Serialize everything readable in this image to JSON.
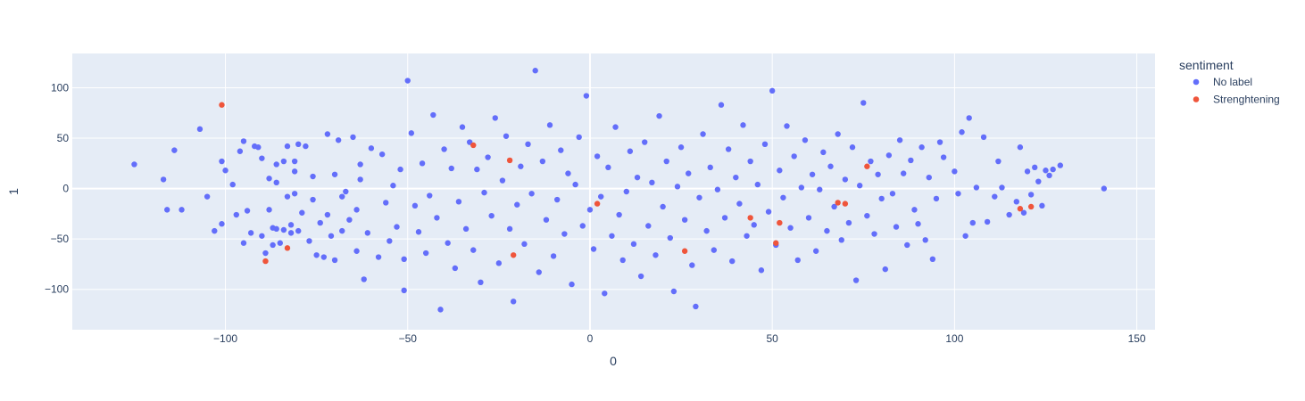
{
  "chart_data": {
    "type": "scatter",
    "title": "",
    "xlabel": "0",
    "ylabel": "1",
    "xlim": [
      -142,
      155
    ],
    "ylim": [
      -140,
      134
    ],
    "x_ticks": [
      -100,
      -50,
      0,
      50,
      100,
      150
    ],
    "y_ticks": [
      -100,
      -50,
      0,
      50,
      100
    ],
    "grid": true,
    "legend_title": "sentiment",
    "legend_placement": "right",
    "colors": {
      "plot_bg": "#e5ecf6",
      "grid": "#ffffff",
      "text": "#2a3f5f"
    },
    "series": [
      {
        "name": "No label",
        "color": "#636efa",
        "cluster_note": "approximately 1600 points forming an elliptical cloud centered near (0, 0); x spans about -125 to 141, y spans about -122 to 118",
        "points": [
          [
            -125,
            24
          ],
          [
            -117,
            9
          ],
          [
            -116,
            -21
          ],
          [
            -114,
            38
          ],
          [
            -112,
            -21
          ],
          [
            -107,
            59
          ],
          [
            -105,
            -8
          ],
          [
            -103,
            -42
          ],
          [
            -101,
            27
          ],
          [
            -101,
            -35
          ],
          [
            -100,
            18
          ],
          [
            -98,
            4
          ],
          [
            -97,
            -26
          ],
          [
            -96,
            37
          ],
          [
            -95,
            -54
          ],
          [
            -95,
            47
          ],
          [
            -94,
            -22
          ],
          [
            -93,
            -44
          ],
          [
            -92,
            42
          ],
          [
            -91,
            41
          ],
          [
            -90,
            30
          ],
          [
            -90,
            -47
          ],
          [
            -89,
            -64
          ],
          [
            -88,
            10
          ],
          [
            -88,
            -21
          ],
          [
            -87,
            -39
          ],
          [
            -87,
            -56
          ],
          [
            -86,
            24
          ],
          [
            -86,
            6
          ],
          [
            -86,
            -40
          ],
          [
            -85,
            -54
          ],
          [
            -84,
            27
          ],
          [
            -84,
            -41
          ],
          [
            -83,
            -8
          ],
          [
            -83,
            42
          ],
          [
            -82,
            -44
          ],
          [
            -82,
            -36
          ],
          [
            -81,
            17
          ],
          [
            -81,
            -5
          ],
          [
            -81,
            27
          ],
          [
            -80,
            44
          ],
          [
            -80,
            -42
          ],
          [
            -79,
            -24
          ],
          [
            -78,
            42
          ],
          [
            -77,
            -52
          ],
          [
            -76,
            -11
          ],
          [
            -76,
            12
          ],
          [
            -75,
            -66
          ],
          [
            -74,
            -34
          ],
          [
            -73,
            -68
          ],
          [
            -72,
            -26
          ],
          [
            -72,
            54
          ],
          [
            -71,
            -47
          ],
          [
            -70,
            14
          ],
          [
            -70,
            -71
          ],
          [
            -69,
            48
          ],
          [
            -68,
            -8
          ],
          [
            -68,
            -42
          ],
          [
            -67,
            -3
          ],
          [
            -66,
            -31
          ],
          [
            -65,
            51
          ],
          [
            -64,
            -62
          ],
          [
            -64,
            -21
          ],
          [
            -63,
            24
          ],
          [
            -63,
            9
          ],
          [
            -62,
            -90
          ],
          [
            -61,
            -44
          ],
          [
            -60,
            40
          ],
          [
            -58,
            -68
          ],
          [
            -57,
            34
          ],
          [
            -56,
            -14
          ],
          [
            -55,
            -52
          ],
          [
            -54,
            3
          ],
          [
            -53,
            -38
          ],
          [
            -52,
            19
          ],
          [
            -51,
            -101
          ],
          [
            -51,
            -70
          ],
          [
            -50,
            107
          ],
          [
            -49,
            55
          ],
          [
            -48,
            -17
          ],
          [
            -47,
            -43
          ],
          [
            -46,
            25
          ],
          [
            -45,
            -64
          ],
          [
            -44,
            -7
          ],
          [
            -43,
            73
          ],
          [
            -42,
            -29
          ],
          [
            -41,
            -120
          ],
          [
            -40,
            39
          ],
          [
            -39,
            -54
          ],
          [
            -38,
            20
          ],
          [
            -37,
            -79
          ],
          [
            -36,
            -13
          ],
          [
            -35,
            61
          ],
          [
            -34,
            -40
          ],
          [
            -33,
            46
          ],
          [
            -32,
            -61
          ],
          [
            -31,
            19
          ],
          [
            -30,
            -93
          ],
          [
            -29,
            -4
          ],
          [
            -28,
            31
          ],
          [
            -27,
            -27
          ],
          [
            -26,
            70
          ],
          [
            -25,
            -74
          ],
          [
            -24,
            8
          ],
          [
            -23,
            52
          ],
          [
            -22,
            -40
          ],
          [
            -21,
            -112
          ],
          [
            -20,
            -16
          ],
          [
            -19,
            22
          ],
          [
            -18,
            -55
          ],
          [
            -17,
            44
          ],
          [
            -16,
            -5
          ],
          [
            -15,
            117
          ],
          [
            -14,
            -83
          ],
          [
            -13,
            27
          ],
          [
            -12,
            -31
          ],
          [
            -11,
            63
          ],
          [
            -10,
            -67
          ],
          [
            -9,
            -11
          ],
          [
            -8,
            38
          ],
          [
            -7,
            -45
          ],
          [
            -6,
            15
          ],
          [
            -5,
            -95
          ],
          [
            -4,
            4
          ],
          [
            -3,
            51
          ],
          [
            -2,
            -37
          ],
          [
            -1,
            92
          ],
          [
            0,
            -21
          ],
          [
            1,
            -60
          ],
          [
            2,
            32
          ],
          [
            3,
            -8
          ],
          [
            4,
            -104
          ],
          [
            5,
            21
          ],
          [
            6,
            -47
          ],
          [
            7,
            61
          ],
          [
            8,
            -26
          ],
          [
            9,
            -71
          ],
          [
            10,
            -3
          ],
          [
            11,
            37
          ],
          [
            12,
            -55
          ],
          [
            13,
            11
          ],
          [
            14,
            -87
          ],
          [
            15,
            46
          ],
          [
            16,
            -37
          ],
          [
            17,
            6
          ],
          [
            18,
            -66
          ],
          [
            19,
            72
          ],
          [
            20,
            -18
          ],
          [
            21,
            27
          ],
          [
            22,
            -49
          ],
          [
            23,
            -102
          ],
          [
            24,
            2
          ],
          [
            25,
            41
          ],
          [
            26,
            -31
          ],
          [
            27,
            15
          ],
          [
            28,
            -76
          ],
          [
            29,
            -117
          ],
          [
            30,
            -9
          ],
          [
            31,
            54
          ],
          [
            32,
            -42
          ],
          [
            33,
            21
          ],
          [
            34,
            -61
          ],
          [
            35,
            -1
          ],
          [
            36,
            83
          ],
          [
            37,
            -29
          ],
          [
            38,
            39
          ],
          [
            39,
            -72
          ],
          [
            40,
            11
          ],
          [
            41,
            -15
          ],
          [
            42,
            63
          ],
          [
            43,
            -47
          ],
          [
            44,
            27
          ],
          [
            45,
            -36
          ],
          [
            46,
            4
          ],
          [
            47,
            -81
          ],
          [
            48,
            44
          ],
          [
            49,
            -23
          ],
          [
            50,
            97
          ],
          [
            51,
            -56
          ],
          [
            52,
            18
          ],
          [
            53,
            -9
          ],
          [
            54,
            62
          ],
          [
            55,
            -39
          ],
          [
            56,
            32
          ],
          [
            57,
            -71
          ],
          [
            58,
            1
          ],
          [
            59,
            48
          ],
          [
            60,
            -29
          ],
          [
            61,
            14
          ],
          [
            62,
            -62
          ],
          [
            63,
            -1
          ],
          [
            64,
            36
          ],
          [
            65,
            -42
          ],
          [
            66,
            22
          ],
          [
            67,
            -18
          ],
          [
            68,
            54
          ],
          [
            69,
            -51
          ],
          [
            70,
            9
          ],
          [
            71,
            -34
          ],
          [
            72,
            41
          ],
          [
            73,
            -91
          ],
          [
            74,
            3
          ],
          [
            75,
            85
          ],
          [
            76,
            -27
          ],
          [
            77,
            27
          ],
          [
            78,
            -45
          ],
          [
            79,
            14
          ],
          [
            80,
            -10
          ],
          [
            81,
            -80
          ],
          [
            82,
            33
          ],
          [
            83,
            -5
          ],
          [
            84,
            -38
          ],
          [
            85,
            48
          ],
          [
            86,
            15
          ],
          [
            87,
            -56
          ],
          [
            88,
            28
          ],
          [
            89,
            -21
          ],
          [
            90,
            -35
          ],
          [
            91,
            41
          ],
          [
            92,
            -51
          ],
          [
            93,
            11
          ],
          [
            94,
            -70
          ],
          [
            95,
            -10
          ],
          [
            96,
            46
          ],
          [
            97,
            31
          ],
          [
            100,
            17
          ],
          [
            101,
            -5
          ],
          [
            102,
            56
          ],
          [
            103,
            -47
          ],
          [
            104,
            70
          ],
          [
            105,
            -34
          ],
          [
            106,
            1
          ],
          [
            108,
            51
          ],
          [
            109,
            -33
          ],
          [
            111,
            -8
          ],
          [
            112,
            27
          ],
          [
            113,
            1
          ],
          [
            115,
            -26
          ],
          [
            117,
            -13
          ],
          [
            118,
            41
          ],
          [
            119,
            -24
          ],
          [
            120,
            17
          ],
          [
            121,
            -6
          ],
          [
            122,
            21
          ],
          [
            123,
            7
          ],
          [
            124,
            -17
          ],
          [
            125,
            18
          ],
          [
            126,
            13
          ],
          [
            127,
            19
          ],
          [
            129,
            23
          ],
          [
            141,
            0
          ]
        ]
      },
      {
        "name": "Strenghtening",
        "color": "#ef553b",
        "points": [
          [
            -101,
            83
          ],
          [
            -89,
            -72
          ],
          [
            -83,
            -59
          ],
          [
            -32,
            43
          ],
          [
            -22,
            28
          ],
          [
            -21,
            -66
          ],
          [
            2,
            -15
          ],
          [
            26,
            -62
          ],
          [
            44,
            -29
          ],
          [
            51,
            -54
          ],
          [
            52,
            -34
          ],
          [
            68,
            -14
          ],
          [
            70,
            -15
          ],
          [
            76,
            22
          ],
          [
            118,
            -20
          ],
          [
            121,
            -18
          ]
        ]
      }
    ]
  }
}
